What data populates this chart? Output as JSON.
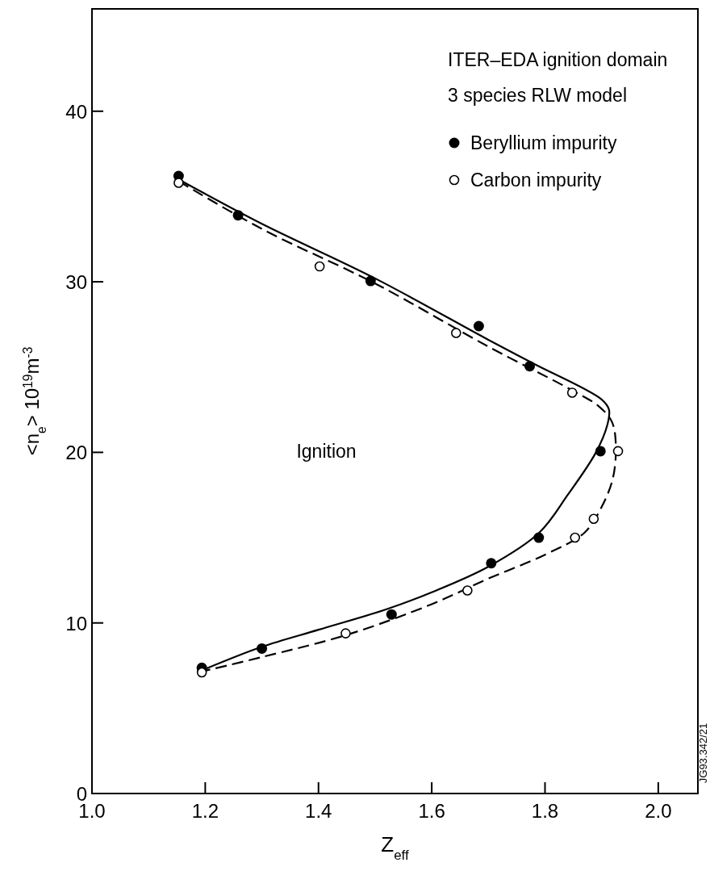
{
  "chart_data": {
    "type": "scatter",
    "title": "ITER–EDA ignition domain",
    "subtitle": "3 species RLW model",
    "xlabel": "Z$_{eff}$",
    "ylabel": "<n$_{e}$> 10$^{19}$m$^{-3}$",
    "xlim": [
      1.0,
      2.07
    ],
    "ylim": [
      0,
      46
    ],
    "xticks": [
      {
        "value": 1.0,
        "label": "1.0"
      },
      1.2,
      1.4,
      1.6,
      1.8,
      {
        "value": 2.0,
        "label": "2.0"
      }
    ],
    "yticks": [
      0,
      10,
      20,
      30,
      40
    ],
    "grid": false,
    "legend": "top right",
    "annotations": [
      "Ignition",
      "JG93.342/21"
    ],
    "series": [
      {
        "name": "Beryllium impurity",
        "color": "#000000",
        "marker": "circle",
        "x": [
          1.153,
          1.258,
          1.492,
          1.683,
          1.773,
          1.898,
          1.789,
          1.705,
          1.529,
          1.3,
          1.194
        ],
        "values": [
          36.2,
          33.9,
          30.05,
          27.4,
          25.05,
          20.07,
          15.0,
          13.5,
          10.5,
          8.5,
          7.37
        ]
      },
      {
        "name": "Carbon impurity",
        "color": "#000000",
        "marker": "circle-open",
        "x": [
          1.153,
          1.402,
          1.643,
          1.848,
          1.929,
          1.886,
          1.853,
          1.663,
          1.448,
          1.194
        ],
        "values": [
          35.8,
          30.9,
          27.0,
          23.5,
          20.07,
          16.1,
          15.0,
          11.9,
          9.39,
          7.1
        ]
      },
      {
        "type": "line",
        "color": "#000000",
        "line_style": "solid",
        "x": [
          1.153,
          1.3,
          1.5,
          1.7,
          1.78,
          1.9,
          1.913,
          1.91,
          1.89,
          1.84,
          1.79,
          1.7,
          1.6,
          1.52,
          1.4,
          1.3,
          1.2
        ],
        "values": [
          36.0,
          33.4,
          30.2,
          26.6,
          25.2,
          23.1,
          22.5,
          21.6,
          20.0,
          17.5,
          15.3,
          13.3,
          11.8,
          10.8,
          9.6,
          8.6,
          7.3
        ]
      },
      {
        "type": "line",
        "color": "#000000",
        "line_style": "dashed",
        "x": [
          1.153,
          1.3,
          1.5,
          1.7,
          1.85,
          1.895,
          1.918,
          1.925,
          1.92,
          1.9,
          1.87,
          1.8,
          1.7,
          1.6,
          1.45,
          1.3,
          1.2
        ],
        "values": [
          35.9,
          33.1,
          29.9,
          26.2,
          23.6,
          22.7,
          21.8,
          20.5,
          18.5,
          16.8,
          15.3,
          14.0,
          12.6,
          11.1,
          9.3,
          8.0,
          7.2
        ]
      }
    ]
  }
}
